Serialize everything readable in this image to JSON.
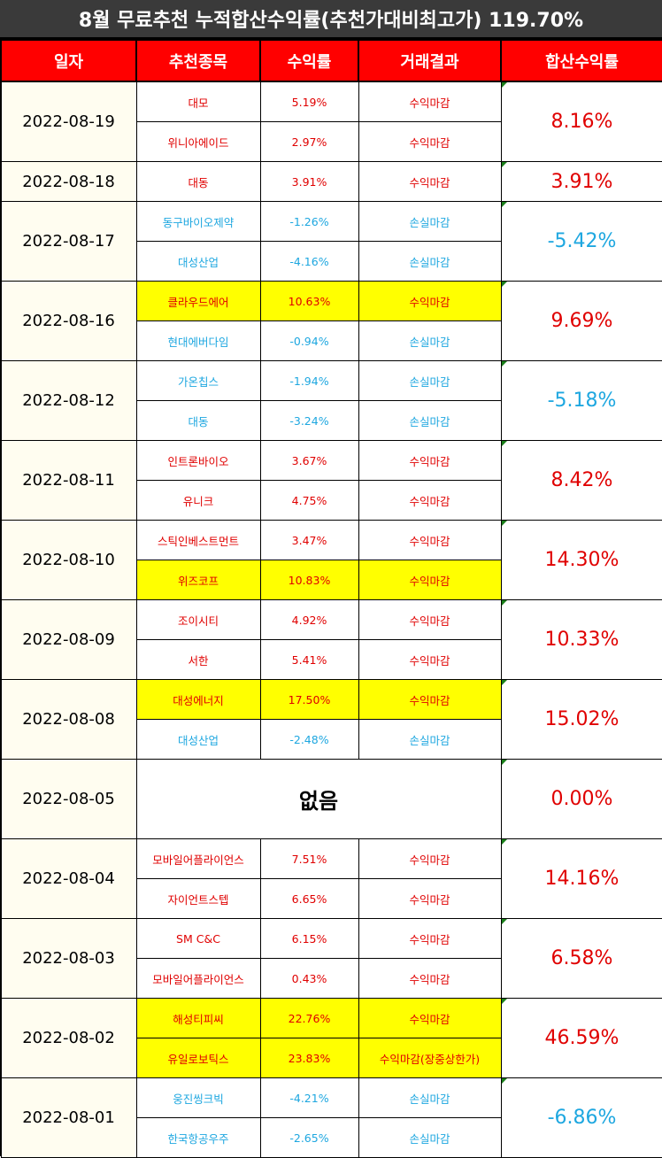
{
  "title": "8월 무료추천 누적합산수익률(추천가대비최고가) 119.70%",
  "headers": {
    "date": "일자",
    "stock": "추천종목",
    "rate": "수익률",
    "result": "거래결과",
    "total": "합산수익률"
  },
  "groups": [
    {
      "date": "2022-08-19",
      "total": "8.16%",
      "total_color": "pos",
      "rows": [
        {
          "name": "대모",
          "rate": "5.19%",
          "result": "수익마감",
          "color": "pos",
          "hl": false
        },
        {
          "name": "위니아에이드",
          "rate": "2.97%",
          "result": "수익마감",
          "color": "pos",
          "hl": false
        }
      ]
    },
    {
      "date": "2022-08-18",
      "total": "3.91%",
      "total_color": "pos",
      "rows": [
        {
          "name": "대동",
          "rate": "3.91%",
          "result": "수익마감",
          "color": "pos",
          "hl": false
        }
      ]
    },
    {
      "date": "2022-08-17",
      "total": "-5.42%",
      "total_color": "neg",
      "rows": [
        {
          "name": "동구바이오제약",
          "rate": "-1.26%",
          "result": "손실마감",
          "color": "neg",
          "hl": false
        },
        {
          "name": "대성산업",
          "rate": "-4.16%",
          "result": "손실마감",
          "color": "neg",
          "hl": false
        }
      ]
    },
    {
      "date": "2022-08-16",
      "total": "9.69%",
      "total_color": "pos",
      "rows": [
        {
          "name": "클라우드에어",
          "rate": "10.63%",
          "result": "수익마감",
          "color": "pos",
          "hl": true
        },
        {
          "name": "현대에버다임",
          "rate": "-0.94%",
          "result": "손실마감",
          "color": "neg",
          "hl": false
        }
      ]
    },
    {
      "date": "2022-08-12",
      "total": "-5.18%",
      "total_color": "neg",
      "rows": [
        {
          "name": "가온칩스",
          "rate": "-1.94%",
          "result": "손실마감",
          "color": "neg",
          "hl": false
        },
        {
          "name": "대동",
          "rate": "-3.24%",
          "result": "손실마감",
          "color": "neg",
          "hl": false
        }
      ]
    },
    {
      "date": "2022-08-11",
      "total": "8.42%",
      "total_color": "pos",
      "rows": [
        {
          "name": "인트론바이오",
          "rate": "3.67%",
          "result": "수익마감",
          "color": "pos",
          "hl": false
        },
        {
          "name": "유니크",
          "rate": "4.75%",
          "result": "수익마감",
          "color": "pos",
          "hl": false
        }
      ]
    },
    {
      "date": "2022-08-10",
      "total": "14.30%",
      "total_color": "pos",
      "rows": [
        {
          "name": "스틱인베스트먼트",
          "rate": "3.47%",
          "result": "수익마감",
          "color": "pos",
          "hl": false
        },
        {
          "name": "위즈코프",
          "rate": "10.83%",
          "result": "수익마감",
          "color": "pos",
          "hl": true
        }
      ]
    },
    {
      "date": "2022-08-09",
      "total": "10.33%",
      "total_color": "pos",
      "rows": [
        {
          "name": "조이시티",
          "rate": "4.92%",
          "result": "수익마감",
          "color": "pos",
          "hl": false
        },
        {
          "name": "서한",
          "rate": "5.41%",
          "result": "수익마감",
          "color": "pos",
          "hl": false
        }
      ]
    },
    {
      "date": "2022-08-08",
      "total": "15.02%",
      "total_color": "pos",
      "rows": [
        {
          "name": "대성에너지",
          "rate": "17.50%",
          "result": "수익마감",
          "color": "pos",
          "hl": true
        },
        {
          "name": "대성산업",
          "rate": "-2.48%",
          "result": "손실마감",
          "color": "neg",
          "hl": false
        }
      ]
    },
    {
      "date": "2022-08-05",
      "total": "0.00%",
      "total_color": "pos",
      "none": "없음",
      "rows": []
    },
    {
      "date": "2022-08-04",
      "total": "14.16%",
      "total_color": "pos",
      "rows": [
        {
          "name": "모바일어플라이언스",
          "rate": "7.51%",
          "result": "수익마감",
          "color": "pos",
          "hl": false
        },
        {
          "name": "자이언트스텝",
          "rate": "6.65%",
          "result": "수익마감",
          "color": "pos",
          "hl": false
        }
      ]
    },
    {
      "date": "2022-08-03",
      "total": "6.58%",
      "total_color": "pos",
      "rows": [
        {
          "name": "SM C&C",
          "rate": "6.15%",
          "result": "수익마감",
          "color": "pos",
          "hl": false
        },
        {
          "name": "모바일어플라이언스",
          "rate": "0.43%",
          "result": "수익마감",
          "color": "pos",
          "hl": false
        }
      ]
    },
    {
      "date": "2022-08-02",
      "total": "46.59%",
      "total_color": "pos",
      "rows": [
        {
          "name": "해성티피씨",
          "rate": "22.76%",
          "result": "수익마감",
          "color": "pos",
          "hl": true
        },
        {
          "name": "유일로보틱스",
          "rate": "23.83%",
          "result": "수익마감(장중상한가)",
          "color": "pos",
          "hl": true
        }
      ]
    },
    {
      "date": "2022-08-01",
      "total": "-6.86%",
      "total_color": "neg",
      "rows": [
        {
          "name": "웅진씽크빅",
          "rate": "-4.21%",
          "result": "손실마감",
          "color": "neg",
          "hl": false
        },
        {
          "name": "한국항공우주",
          "rate": "-2.65%",
          "result": "손실마감",
          "color": "neg",
          "hl": false
        }
      ]
    }
  ]
}
